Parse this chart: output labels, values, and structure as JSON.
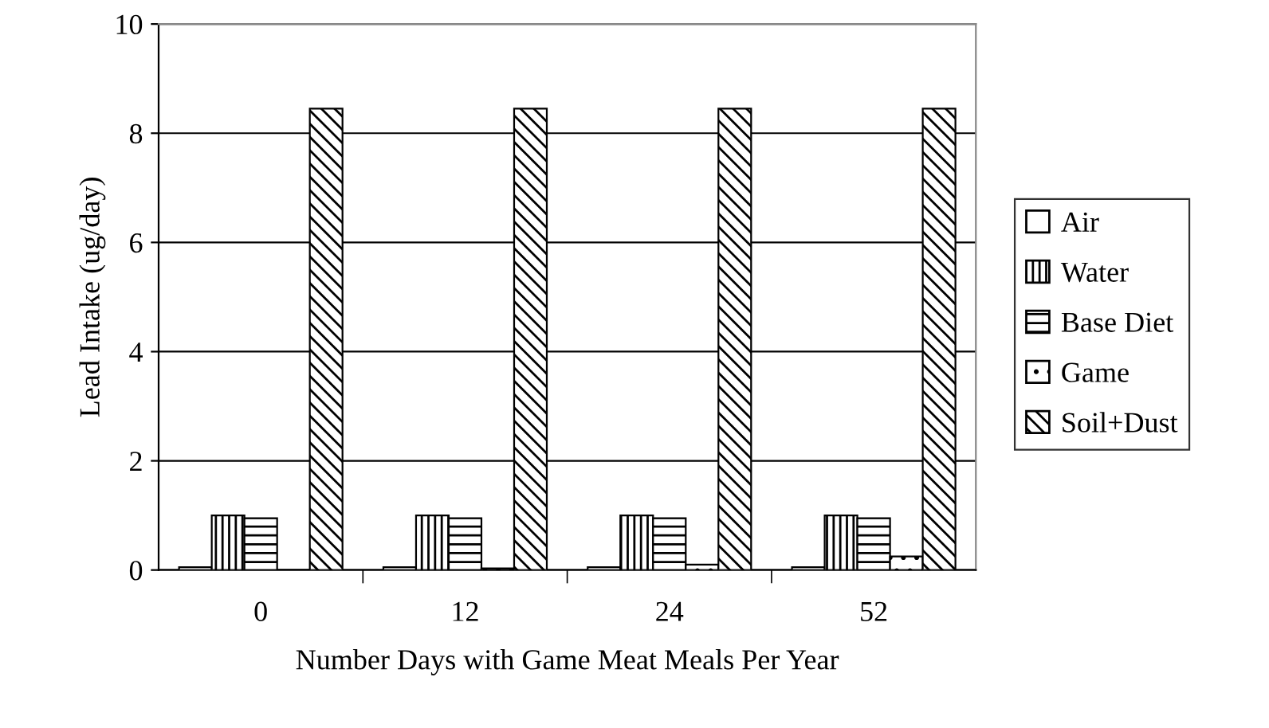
{
  "chart_data": {
    "type": "bar",
    "xlabel": "Number Days with Game Meat Meals Per Year",
    "ylabel": "Lead Intake (ug/day)",
    "categories": [
      "0",
      "12",
      "24",
      "52"
    ],
    "series": [
      {
        "name": "Air",
        "color": "#ffffff",
        "values": [
          0.05,
          0.05,
          0.05,
          0.05
        ]
      },
      {
        "name": "Water",
        "color": "#000000",
        "values": [
          1.0,
          1.0,
          1.0,
          1.0
        ]
      },
      {
        "name": "Base Diet",
        "color": "#000000",
        "values": [
          0.95,
          0.95,
          0.95,
          0.95
        ]
      },
      {
        "name": "Game",
        "color": "#000000",
        "values": [
          0,
          0.03,
          0.1,
          0.25
        ]
      },
      {
        "name": "Soil+Dust",
        "color": "#000000",
        "values": [
          8.45,
          8.45,
          8.45,
          8.45
        ]
      }
    ],
    "ylim": [
      0,
      10
    ],
    "yticks": [
      0,
      2,
      4,
      6,
      8,
      10
    ],
    "grid": "y",
    "legend": "right"
  }
}
